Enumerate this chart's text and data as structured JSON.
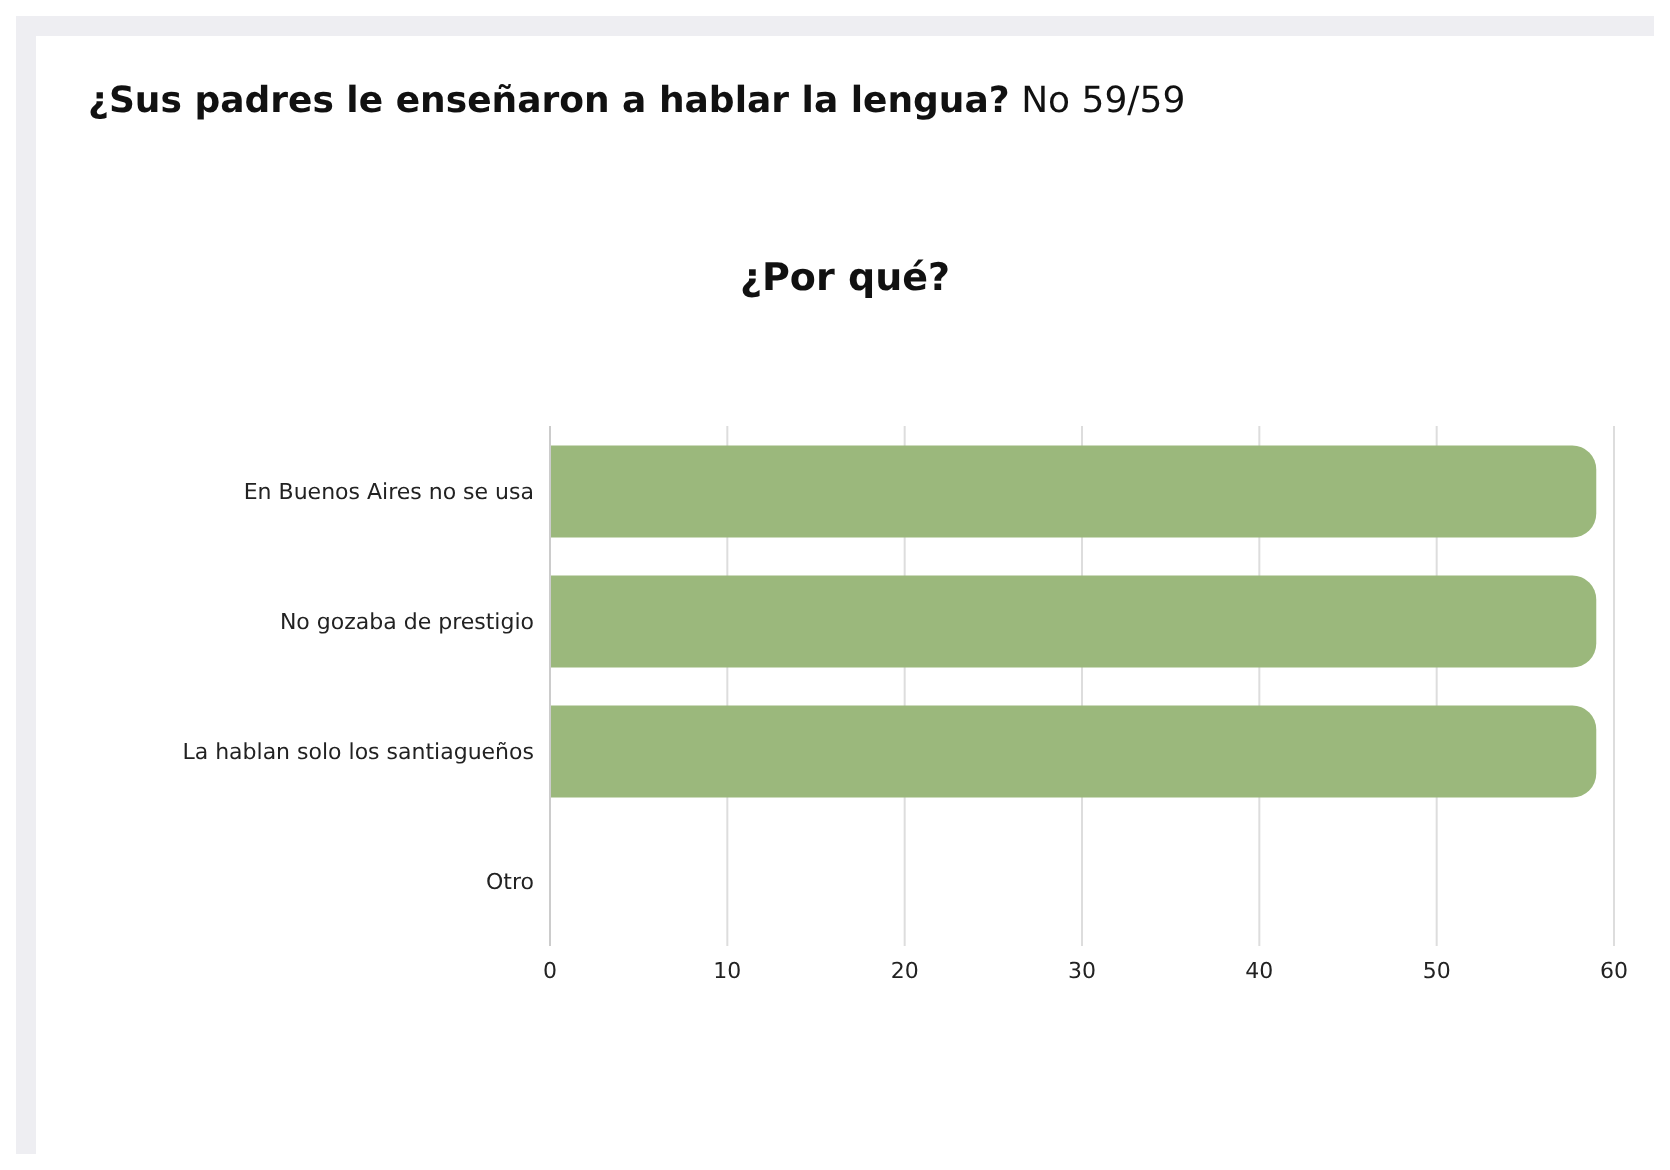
{
  "chart_data": {
    "type": "bar",
    "orientation": "horizontal",
    "title": "¿Por qué?",
    "annotations": [
      "¿Sus padres le enseñaron a hablar la lengua?",
      "No 59/59"
    ],
    "categories": [
      "En Buenos Aires no se usa",
      "No gozaba de prestigio",
      "La hablan solo los santiagueños",
      "Otro"
    ],
    "values": [
      59,
      59,
      59,
      0
    ],
    "color": "#9bb87c",
    "xlim": [
      0,
      60
    ],
    "xticks": [
      0,
      10,
      20,
      30,
      40,
      50,
      60
    ],
    "grid": "x"
  }
}
